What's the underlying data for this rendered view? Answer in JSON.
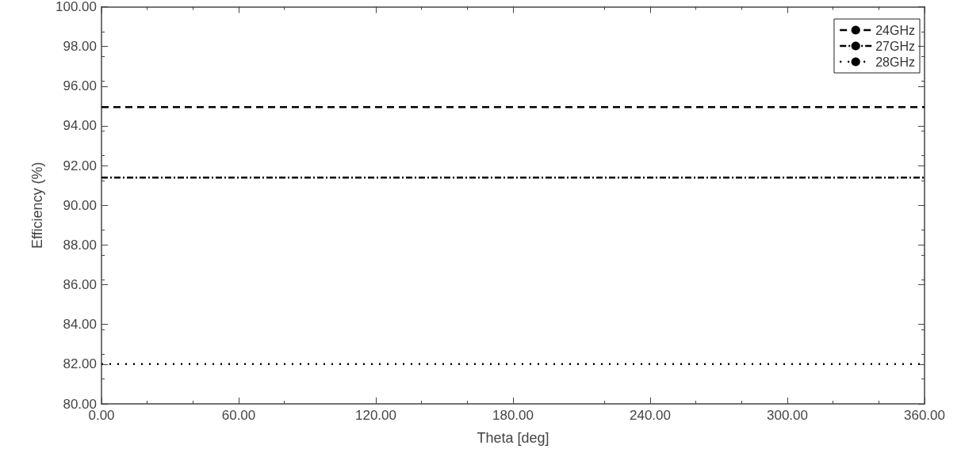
{
  "chart_data": {
    "type": "line",
    "xlabel": "Theta [deg]",
    "ylabel": "Efficiency (%)",
    "x": [
      0,
      360
    ],
    "series": [
      {
        "name": "24GHz",
        "color": "#000000",
        "values": [
          94.95,
          94.95
        ],
        "line_style": "dashed"
      },
      {
        "name": "27GHz",
        "color": "#000000",
        "values": [
          91.4,
          91.4
        ],
        "line_style": "dashdot"
      },
      {
        "name": "28GHz",
        "color": "#000000",
        "values": [
          82.0,
          82.0
        ],
        "line_style": "dotted"
      }
    ],
    "xlim": [
      0,
      360
    ],
    "xticks": [
      {
        "value": 0,
        "label": "0.00"
      },
      {
        "value": 60,
        "label": "60.00"
      },
      {
        "value": 120,
        "label": "120.00"
      },
      {
        "value": 180,
        "label": "180.00"
      },
      {
        "value": 240,
        "label": "240.00"
      },
      {
        "value": 300,
        "label": "300.00"
      },
      {
        "value": 360,
        "label": "360.00"
      }
    ],
    "ylim": [
      80,
      100
    ],
    "yticks": [
      {
        "value": 80,
        "label": "80.00"
      },
      {
        "value": 82,
        "label": "82.00"
      },
      {
        "value": 84,
        "label": "84.00"
      },
      {
        "value": 86,
        "label": "86.00"
      },
      {
        "value": 88,
        "label": "88.00"
      },
      {
        "value": 90,
        "label": "90.00"
      },
      {
        "value": 92,
        "label": "92.00"
      },
      {
        "value": 94,
        "label": "94.00"
      },
      {
        "value": 96,
        "label": "96.00"
      },
      {
        "value": 98,
        "label": "98.00"
      },
      {
        "value": 100,
        "label": "100.00"
      }
    ],
    "grid": false,
    "legend": "top right",
    "marker": "none"
  }
}
